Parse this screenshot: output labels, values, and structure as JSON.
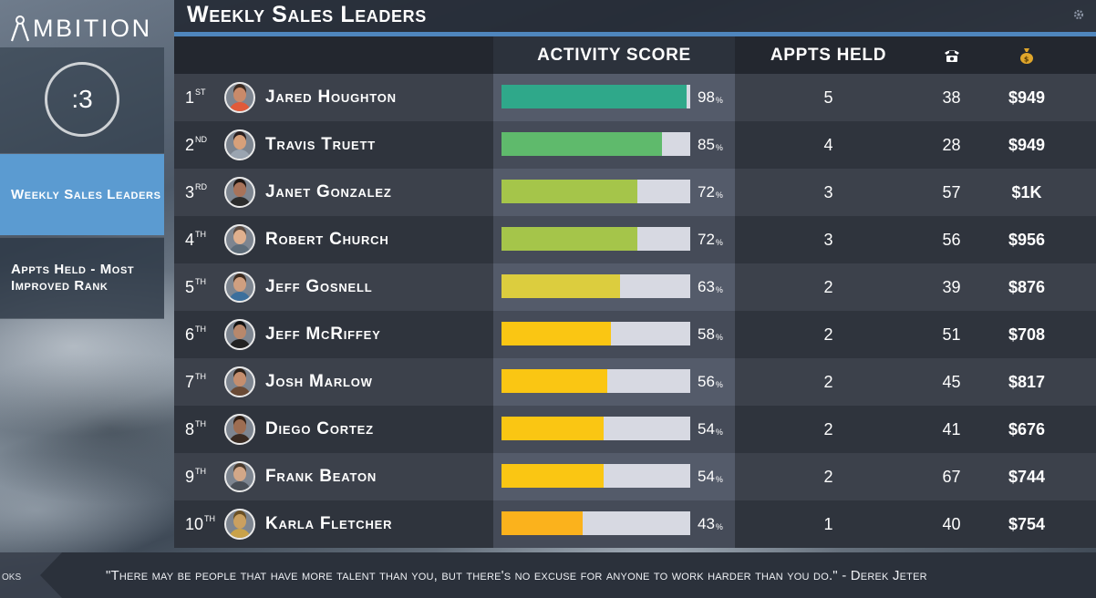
{
  "app": {
    "logo_text": "MBITION"
  },
  "countdown": {
    "value": ":3"
  },
  "sidebar": {
    "items": [
      {
        "label": "Weekly Sales Leaders",
        "active": true
      },
      {
        "label": "Appts Held - Most Improved Rank",
        "active": false
      }
    ]
  },
  "header": {
    "title": "Weekly Sales Leaders",
    "settings_icon": "gear-icon"
  },
  "table": {
    "columns": {
      "activity": "ACTIVITY SCORE",
      "appts": "APPTS HELD",
      "phone_icon": "phone-icon",
      "money_icon": "money-bag-icon"
    },
    "rows": [
      {
        "rank": "1",
        "suffix": "ST",
        "name": "Jared Houghton",
        "score": 98,
        "score_text": "98",
        "appts": "5",
        "calls": "38",
        "revenue": "$949"
      },
      {
        "rank": "2",
        "suffix": "ND",
        "name": "Travis Truett",
        "score": 85,
        "score_text": "85",
        "appts": "4",
        "calls": "28",
        "revenue": "$949"
      },
      {
        "rank": "3",
        "suffix": "RD",
        "name": "Janet Gonzalez",
        "score": 72,
        "score_text": "72",
        "appts": "3",
        "calls": "57",
        "revenue": "$1K"
      },
      {
        "rank": "4",
        "suffix": "TH",
        "name": "Robert Church",
        "score": 72,
        "score_text": "72",
        "appts": "3",
        "calls": "56",
        "revenue": "$956"
      },
      {
        "rank": "5",
        "suffix": "TH",
        "name": "Jeff Gosnell",
        "score": 63,
        "score_text": "63",
        "appts": "2",
        "calls": "39",
        "revenue": "$876"
      },
      {
        "rank": "6",
        "suffix": "TH",
        "name": "Jeff McRiffey",
        "score": 58,
        "score_text": "58",
        "appts": "2",
        "calls": "51",
        "revenue": "$708"
      },
      {
        "rank": "7",
        "suffix": "TH",
        "name": "Josh Marlow",
        "score": 56,
        "score_text": "56",
        "appts": "2",
        "calls": "45",
        "revenue": "$817"
      },
      {
        "rank": "8",
        "suffix": "TH",
        "name": "Diego Cortez",
        "score": 54,
        "score_text": "54",
        "appts": "2",
        "calls": "41",
        "revenue": "$676"
      },
      {
        "rank": "9",
        "suffix": "TH",
        "name": "Frank Beaton",
        "score": 54,
        "score_text": "54",
        "appts": "2",
        "calls": "67",
        "revenue": "$744"
      },
      {
        "rank": "10",
        "suffix": "TH",
        "name": "Karla Fletcher",
        "score": 43,
        "score_text": "43",
        "appts": "1",
        "calls": "40",
        "revenue": "$754"
      }
    ]
  },
  "score_colors": {
    "98": "#2fa88a",
    "85": "#5fba6c",
    "72": "#a5c54a",
    "63": "#dccd3e",
    "58": "#fac613",
    "56": "#fac613",
    "54": "#fac613",
    "43": "#fbb21c"
  },
  "score_unit": "%",
  "ticker": {
    "prev_fragment": "oks",
    "quote": "\"There may be people that have more talent than you, but there's no excuse for anyone to work harder than you do.\" - Derek Jeter"
  }
}
